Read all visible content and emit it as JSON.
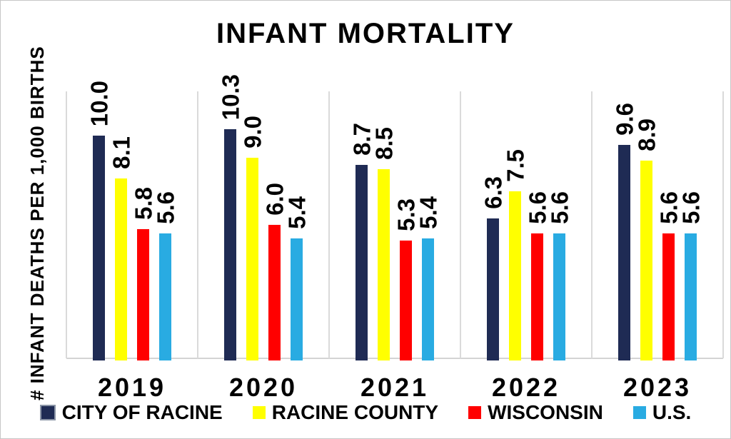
{
  "title": "INFANT MORTALITY",
  "y_axis_label": "# INFANT DEATHS PER 1,000 BIRTHS",
  "colors": {
    "navy": "#1F2B54",
    "yellow": "#FFFF00",
    "red": "#FF0000",
    "cyan": "#29ABE2",
    "gridline": "#DADADA",
    "axis_line": "#D4D4D4",
    "text": "#000000"
  },
  "chart_data": {
    "type": "bar",
    "title": "INFANT MORTALITY",
    "xlabel": "",
    "ylabel": "# INFANT DEATHS PER 1,000 BIRTHS",
    "categories": [
      "2019",
      "2020",
      "2021",
      "2022",
      "2023"
    ],
    "series": [
      {
        "name": "CITY OF RACINE",
        "color": "#1F2B54",
        "swatch_border": "#8A94A6",
        "values": [
          10.0,
          10.3,
          8.7,
          6.3,
          9.6
        ]
      },
      {
        "name": "RACINE COUNTY",
        "color": "#FFFF00",
        "swatch_border": null,
        "values": [
          8.1,
          9.0,
          8.5,
          7.5,
          8.9
        ]
      },
      {
        "name": "WISCONSIN",
        "color": "#FF0000",
        "swatch_border": null,
        "values": [
          5.8,
          6.0,
          5.3,
          5.6,
          5.6
        ]
      },
      {
        "name": "U.S.",
        "color": "#29ABE2",
        "swatch_border": null,
        "values": [
          5.6,
          5.4,
          5.4,
          5.6,
          5.6
        ]
      }
    ],
    "ylim": [
      0,
      12
    ],
    "grid": "vertical category separators only",
    "legend_position": "bottom",
    "data_labels": "rotated 90deg, one decimal"
  }
}
